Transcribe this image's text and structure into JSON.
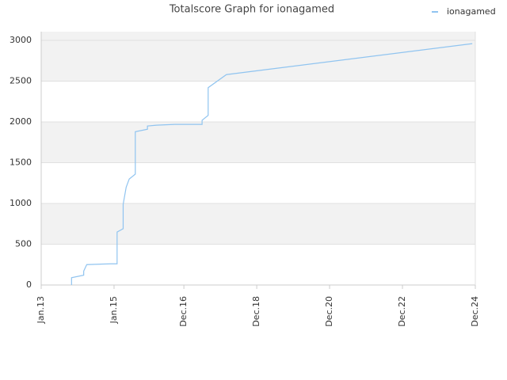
{
  "chart_data": {
    "type": "line",
    "title": "Totalscore Graph for ionagamed",
    "x": [
      "2013-11",
      "2013-11",
      "2014-03",
      "2014-03",
      "2014-04",
      "2014-12",
      "2015-02",
      "2015-02",
      "2015-04",
      "2015-04",
      "2015-05",
      "2015-06",
      "2015-08",
      "2015-08",
      "2015-12",
      "2015-12",
      "2016-03",
      "2016-09",
      "2017-06",
      "2017-06",
      "2017-08",
      "2017-08",
      "2018-02",
      "2024-11"
    ],
    "series": [
      {
        "name": "ionagamed",
        "color": "#90c4f0",
        "values": [
          0,
          90,
          120,
          170,
          250,
          260,
          260,
          650,
          690,
          990,
          1200,
          1300,
          1360,
          1880,
          1910,
          1950,
          1960,
          1970,
          1970,
          2020,
          2080,
          2420,
          2580,
          2960
        ]
      }
    ],
    "xlim": [
      "2013-01",
      "2024-12"
    ],
    "xticks": [
      {
        "value": "2013-01",
        "label": "Jan.13"
      },
      {
        "value": "2015-01",
        "label": "Jan.15"
      },
      {
        "value": "2016-12",
        "label": "Dec.16"
      },
      {
        "value": "2018-12",
        "label": "Dec.18"
      },
      {
        "value": "2020-12",
        "label": "Dec.20"
      },
      {
        "value": "2022-12",
        "label": "Dec.22"
      },
      {
        "value": "2024-12",
        "label": "Dec.24"
      }
    ],
    "ylim": [
      0,
      3000
    ],
    "yticks": [
      0,
      500,
      1000,
      1500,
      2000,
      2500,
      3000
    ],
    "grid": true,
    "legend": "top-right"
  }
}
